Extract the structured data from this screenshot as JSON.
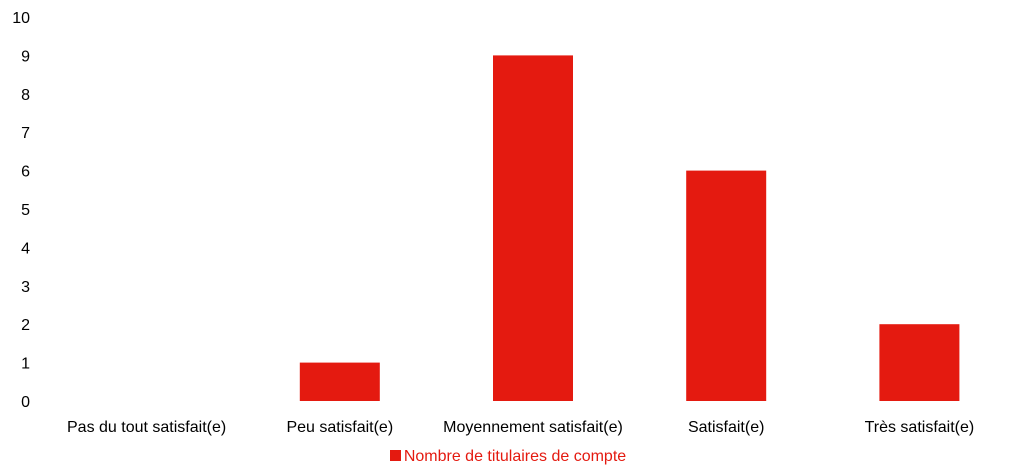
{
  "chart_data": {
    "type": "bar",
    "categories": [
      "Pas du tout satisfait(e)",
      "Peu satisfait(e)",
      "Moyennement satisfait(e)",
      "Satisfait(e)",
      "Très satisfait(e)"
    ],
    "series": [
      {
        "name": "Nombre de titulaires de compte",
        "values": [
          0,
          1,
          9,
          6,
          2
        ],
        "color": "#e41a10"
      }
    ],
    "yticks": [
      "0",
      "1",
      "2",
      "3",
      "4",
      "5",
      "6",
      "7",
      "8",
      "9",
      "10"
    ],
    "ylim": [
      0,
      10
    ],
    "grid": false,
    "legend_position": "bottom"
  }
}
